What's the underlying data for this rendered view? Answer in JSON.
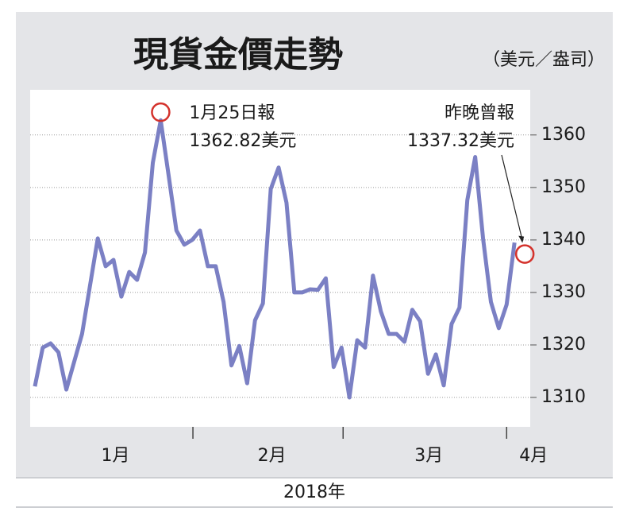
{
  "chart_data": {
    "type": "line",
    "title": "現貨金價走勢",
    "unit_label": "（美元／盎司）",
    "x_label": "2018年",
    "series": [
      {
        "color": "#7b80c4",
        "values": [
          1312.1,
          1319.5,
          1320.3,
          1318.6,
          1311.5,
          1316.8,
          1322.1,
          1331.2,
          1340.3,
          1335.0,
          1336.2,
          1329.2,
          1333.9,
          1332.4,
          1337.6,
          1354.7,
          1362.8,
          1352.4,
          1341.8,
          1339.1,
          1340.0,
          1341.8,
          1335.0,
          1335.0,
          1328.2,
          1316.1,
          1319.8,
          1312.7,
          1324.7,
          1327.9,
          1349.7,
          1353.8,
          1347.1,
          1330.0,
          1330.0,
          1330.6,
          1330.5,
          1332.7,
          1315.8,
          1319.5,
          1310.0,
          1320.9,
          1319.5,
          1333.2,
          1326.4,
          1322.1,
          1322.1,
          1320.6,
          1326.7,
          1324.5,
          1314.5,
          1318.2,
          1312.3,
          1324.0,
          1327.1,
          1347.6,
          1355.8,
          1340.3,
          1328.2,
          1323.2,
          1327.7,
          1339.5
        ]
      }
    ],
    "months": [
      "1月",
      "2月",
      "3月",
      "4月"
    ],
    "xlim": [
      -0.6,
      63
    ],
    "xticks": [
      20.1,
      39.2,
      60
    ],
    "ylim": [
      1304.4,
      1368.6
    ],
    "yticks": [
      1310,
      1320,
      1330,
      1340,
      1350,
      1360
    ],
    "grid": true,
    "annotations": [
      {
        "date": "1月25日報",
        "price": {
          "value": 1362.82,
          "label": "1362.82美元"
        }
      },
      {
        "date": "昨晚曾報",
        "price": {
          "value": 1337.32,
          "label": "1337.32美元"
        }
      }
    ]
  }
}
